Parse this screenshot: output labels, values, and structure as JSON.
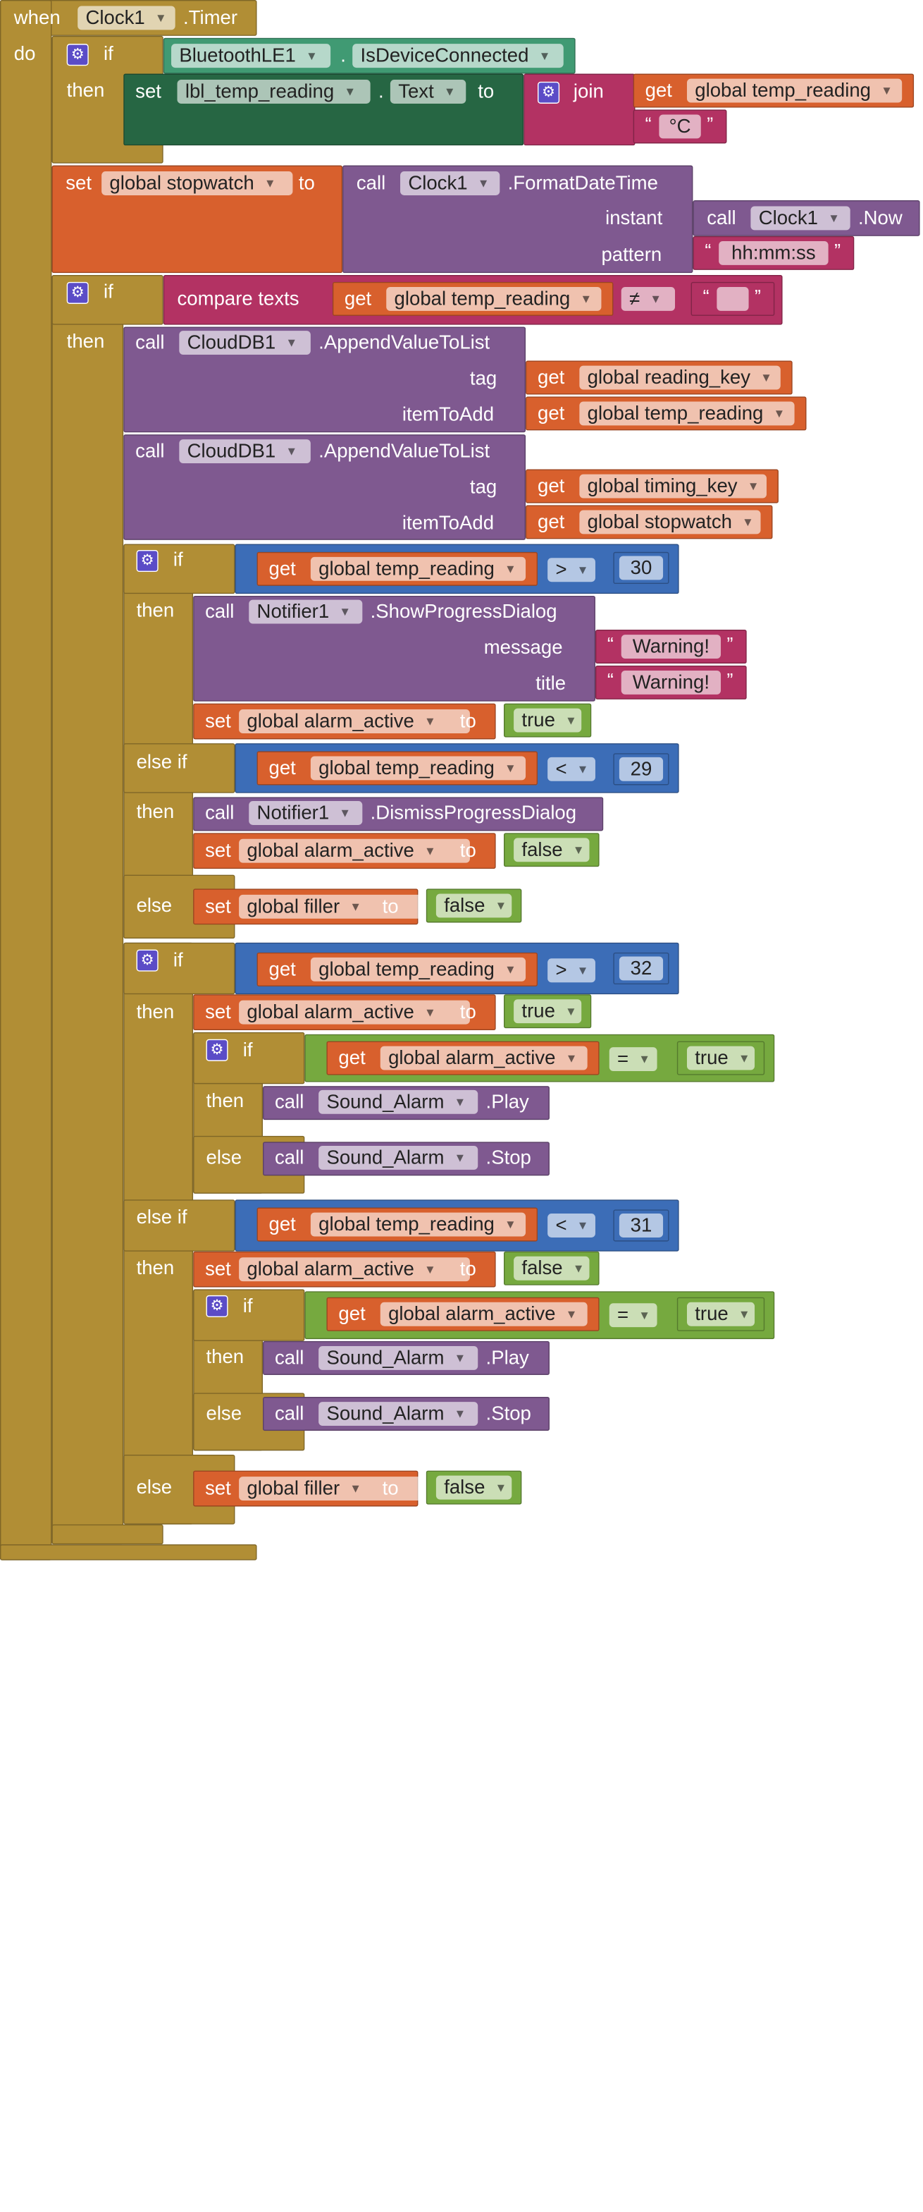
{
  "colors": {
    "control": "#b18e35",
    "procedure": "#7f5990",
    "variable": "#d8602d",
    "component_green": "#266643",
    "component_teal": "#409a73",
    "text": "#b33263",
    "math": "#3c6db7",
    "logic": "#76a93f"
  },
  "kw": {
    "when": "when",
    "do": "do",
    "if": "if",
    "then": "then",
    "else": "else",
    "else_if": "else if",
    "set": "set",
    "get": "get",
    "to": "to",
    "call": "call",
    "join": "join",
    "compare_texts": "compare texts",
    "dot": ".",
    "open_quote": "“",
    "close_quote": "”"
  },
  "event": {
    "component": "Clock1",
    "event": ".Timer"
  },
  "icons": {
    "gear": "gear-icon",
    "dropdown": "dropdown-arrow-icon"
  },
  "components": {
    "ble": "BluetoothLE1",
    "ble_prop": "IsDeviceConnected",
    "lbl": "lbl_temp_reading",
    "lbl_prop": "Text",
    "clock": "Clock1",
    "format_method": ".FormatDateTime",
    "now_method": ".Now",
    "cloud": "CloudDB1",
    "append_method": ".AppendValueToList",
    "notifier": "Notifier1",
    "show_method": ".ShowProgressDialog",
    "dismiss_method": ".DismissProgressDialog",
    "sound": "Sound_Alarm",
    "play_method": ".Play",
    "stop_method": ".Stop"
  },
  "params": {
    "instant": "instant",
    "pattern": "pattern",
    "tag": "tag",
    "item_to_add": "itemToAdd",
    "message": "message",
    "title": "title"
  },
  "vars": {
    "temp": "global temp_reading",
    "stopwatch": "global stopwatch",
    "reading_key": "global reading_key",
    "timing_key": "global timing_key",
    "alarm": "global alarm_active",
    "filler": "global filler"
  },
  "strings": {
    "celsius": "°C",
    "pattern": "hh:mm:ss",
    "warning": "Warning!",
    "empty": ""
  },
  "ops": {
    "neq": "≠",
    "gt": ">",
    "lt": "<",
    "eq": "="
  },
  "numbers": {
    "n30": "30",
    "n29": "29",
    "n32": "32",
    "n31": "31"
  },
  "bools": {
    "true": "true",
    "false": "false"
  }
}
